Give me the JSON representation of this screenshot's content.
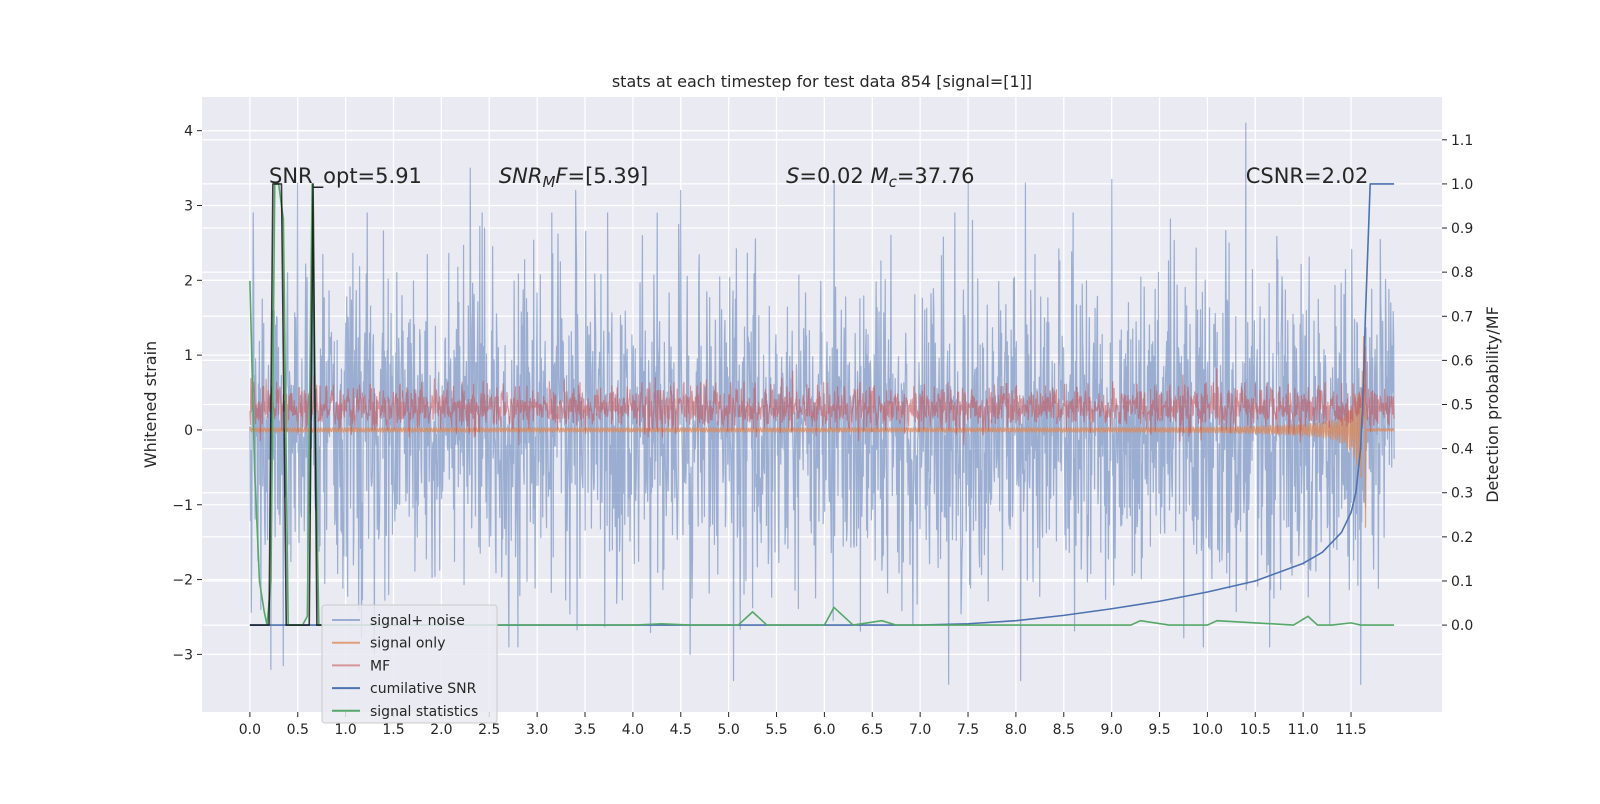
{
  "chart_data": {
    "type": "line",
    "title": "stats at each timestep for test data 854 [signal=[1]]",
    "xlabel": "",
    "ylabel": "Whitened strain",
    "y2label": "Detection probability/MF",
    "xlim": [
      -0.5,
      12.45
    ],
    "ylim": [
      -3.77,
      4.45
    ],
    "y2lim": [
      -0.197,
      1.197
    ],
    "x_ticks": [
      0.0,
      0.5,
      1.0,
      1.5,
      2.0,
      2.5,
      3.0,
      3.5,
      4.0,
      4.5,
      5.0,
      5.5,
      6.0,
      6.5,
      7.0,
      7.5,
      8.0,
      8.5,
      9.0,
      9.5,
      10.0,
      10.5,
      11.0,
      11.5
    ],
    "x_tick_labels": [
      "0.0",
      "0.5",
      "1.0",
      "1.5",
      "2.0",
      "2.5",
      "3.0",
      "3.5",
      "4.0",
      "4.5",
      "5.0",
      "5.5",
      "6.0",
      "6.5",
      "7.0",
      "7.5",
      "8.0",
      "8.5",
      "9.0",
      "9.5",
      "10.0",
      "10.5",
      "11.0",
      "11.5"
    ],
    "y_ticks": [
      -3,
      -2,
      -1,
      0,
      1,
      2,
      3,
      4
    ],
    "y_tick_labels": [
      "−3",
      "−2",
      "−1",
      "0",
      "1",
      "2",
      "3",
      "4"
    ],
    "y2_ticks": [
      0.0,
      0.1,
      0.2,
      0.3,
      0.4,
      0.5,
      0.6,
      0.7,
      0.8,
      0.9,
      1.0,
      1.1
    ],
    "y2_tick_labels": [
      "0.0",
      "0.1",
      "0.2",
      "0.3",
      "0.4",
      "0.5",
      "0.6",
      "0.7",
      "0.8",
      "0.9",
      "1.0",
      "1.1"
    ],
    "grid": true,
    "legend_position": "lower-left",
    "annotations": [
      {
        "text": "SNR_opt=5.91",
        "x": 0.2,
        "y": 3.3,
        "axis": "left"
      },
      {
        "text": "SNR_MF=[5.39]",
        "math": "SNR_MF",
        "x": 2.6,
        "y": 3.3,
        "axis": "left"
      },
      {
        "text": "S=0.02   M_c=37.76",
        "math": "S_Mc",
        "x": 5.6,
        "y": 3.3,
        "axis": "left"
      },
      {
        "text": "CSNR=2.02",
        "x": 10.4,
        "y": 3.3,
        "axis": "left"
      }
    ],
    "series": [
      {
        "name": "signal+ noise",
        "axis": "left",
        "color": "#4c72b0",
        "opacity": 0.5,
        "generator": "noise",
        "x_range": [
          0.0,
          11.95
        ],
        "amplitude_sigma": 1.0,
        "peaks_max": [
          [
            0.5,
            3.3
          ],
          [
            2.3,
            3.5
          ],
          [
            10.4,
            4.1
          ],
          [
            9.0,
            3.35
          ],
          [
            7.5,
            3.3
          ],
          [
            3.4,
            3.2
          ],
          [
            4.5,
            3.2
          ],
          [
            6.1,
            3.3
          ],
          [
            8.1,
            3.3
          ]
        ],
        "peaks_min": [
          [
            0.22,
            -3.2
          ],
          [
            0.35,
            -3.15
          ],
          [
            1.3,
            -3.0
          ],
          [
            5.05,
            -3.35
          ],
          [
            8.05,
            -3.35
          ],
          [
            11.6,
            -3.4
          ],
          [
            7.3,
            -3.4
          ],
          [
            4.6,
            -3.0
          ]
        ]
      },
      {
        "name": "signal only",
        "axis": "left",
        "color": "#dd8452",
        "opacity": 0.75,
        "generator": "chirp",
        "x_range": [
          0.0,
          11.95
        ],
        "merger_x": 11.65,
        "peak_max": 1.25,
        "peak_min": -1.3
      },
      {
        "name": "MF",
        "axis": "right",
        "color": "#c44e52",
        "opacity": 0.55,
        "generator": "band",
        "x_range": [
          0.0,
          11.95
        ],
        "center": 0.49,
        "spread": 0.04,
        "spike_x": 11.65,
        "spike_max": 0.63
      },
      {
        "name": "cumilative SNR",
        "axis": "right",
        "color": "#4c72b0",
        "opacity": 1.0,
        "x": [
          0.0,
          7.0,
          7.5,
          8.0,
          8.5,
          9.0,
          9.5,
          10.0,
          10.5,
          11.0,
          11.2,
          11.4,
          11.5,
          11.55,
          11.6,
          11.63,
          11.65,
          11.7,
          11.95
        ],
        "values": [
          0.0,
          0.0,
          0.003,
          0.01,
          0.022,
          0.037,
          0.054,
          0.075,
          0.1,
          0.14,
          0.165,
          0.21,
          0.255,
          0.3,
          0.4,
          0.55,
          0.7,
          1.0,
          1.0
        ]
      },
      {
        "name": "signal statistics",
        "axis": "right",
        "color": "#55a868",
        "opacity": 1.0,
        "x": [
          0.0,
          0.05,
          0.1,
          0.15,
          0.18,
          0.22,
          0.26,
          0.3,
          0.35,
          0.4,
          0.45,
          0.5,
          0.55,
          0.6,
          0.65,
          0.68,
          0.72,
          0.78,
          1.0,
          4.0,
          4.3,
          4.6,
          5.1,
          5.25,
          5.4,
          6.0,
          6.1,
          6.3,
          6.6,
          6.75,
          7.5,
          9.2,
          9.3,
          9.6,
          10.0,
          10.1,
          10.9,
          11.05,
          11.15,
          11.3,
          11.5,
          11.6,
          11.95
        ],
        "values": [
          0.78,
          0.35,
          0.1,
          0.03,
          0.0,
          0.1,
          1.0,
          1.0,
          0.92,
          0.0,
          0.0,
          0.0,
          0.0,
          0.02,
          1.0,
          0.5,
          0.0,
          0.0,
          0.0,
          0.0,
          0.003,
          0.0,
          0.0,
          0.03,
          0.0,
          0.0,
          0.04,
          0.0,
          0.01,
          0.0,
          0.0,
          0.0,
          0.01,
          0.0,
          0.0,
          0.01,
          0.0,
          0.02,
          0.0,
          0.0,
          0.005,
          0.0,
          0.0
        ]
      },
      {
        "name": "",
        "axis": "right",
        "color": "#000000",
        "opacity": 0.75,
        "x": [
          0.0,
          0.17,
          0.2,
          0.24,
          0.33,
          0.38,
          0.42,
          0.62,
          0.66,
          0.7,
          0.75
        ],
        "values": [
          0.0,
          0.0,
          0.0,
          1.0,
          1.0,
          0.0,
          0.0,
          0.0,
          1.0,
          0.0,
          0.0
        ]
      }
    ],
    "legend": [
      "signal+ noise",
      "signal only",
      "MF",
      "cumilative SNR",
      "signal statistics"
    ]
  }
}
